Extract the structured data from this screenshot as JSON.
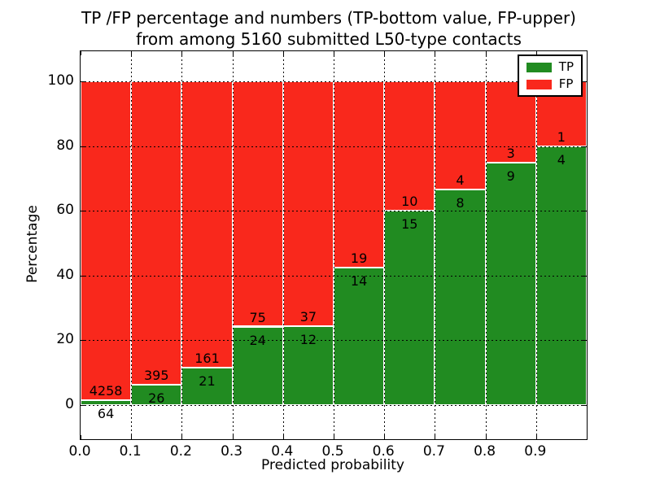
{
  "figure": {
    "title_line1": "TP /FP percentage and numbers (TP-bottom value, FP-upper)",
    "title_line2": "from among 5160 submitted L50-type contacts"
  },
  "axes": {
    "xlabel": "Predicted probability",
    "ylabel": "Percentage",
    "x_tick_labels": [
      "0.0",
      "0.1",
      "0.2",
      "0.3",
      "0.4",
      "0.5",
      "0.6",
      "0.7",
      "0.8",
      "0.9"
    ],
    "y_tick_labels": [
      "0",
      "20",
      "40",
      "60",
      "80",
      "100"
    ],
    "grid": true,
    "grid_style": "dotted-black",
    "bar_edge_color": "#ffffff"
  },
  "legend": {
    "position": "upper-right",
    "entries": [
      {
        "label": "TP",
        "color": "#218b21"
      },
      {
        "label": "FP",
        "color": "#f9281c"
      }
    ]
  },
  "chart_data": {
    "type": "bar",
    "stacked": true,
    "normalized": "each bin stack totals 100%",
    "title": "TP /FP percentage and numbers (TP-bottom value, FP-upper) from among 5160 submitted L50-type contacts",
    "xlabel": "Predicted probability",
    "ylabel": "Percentage",
    "total_contacts": 5160,
    "bins": [
      [
        0.0,
        0.1
      ],
      [
        0.1,
        0.2
      ],
      [
        0.2,
        0.3
      ],
      [
        0.3,
        0.4
      ],
      [
        0.4,
        0.5
      ],
      [
        0.5,
        0.6
      ],
      [
        0.6,
        0.7
      ],
      [
        0.7,
        0.8
      ],
      [
        0.8,
        0.9
      ],
      [
        0.9,
        1.0
      ]
    ],
    "series": [
      {
        "name": "TP",
        "color": "#218b21",
        "counts": [
          64,
          26,
          21,
          24,
          12,
          14,
          15,
          8,
          9,
          4
        ],
        "percent_of_bin": [
          1.5,
          6.2,
          11.5,
          24.2,
          24.5,
          42.4,
          60.0,
          66.7,
          75.0,
          80.0
        ]
      },
      {
        "name": "FP",
        "color": "#f9281c",
        "counts": [
          4258,
          395,
          161,
          75,
          37,
          19,
          10,
          4,
          3,
          1
        ],
        "percent_of_bin": [
          98.5,
          93.8,
          88.5,
          75.8,
          75.5,
          57.6,
          40.0,
          33.3,
          25.0,
          20.0
        ]
      }
    ],
    "annotation_rule": "TP count printed below green top edge, FP count printed above it",
    "xlim": [
      0.0,
      1.0
    ],
    "ylim": [
      -10.6,
      109.4
    ],
    "x_ticks": [
      0.0,
      0.1,
      0.2,
      0.3,
      0.4,
      0.5,
      0.6,
      0.7,
      0.8,
      0.9
    ],
    "y_ticks": [
      0,
      20,
      40,
      60,
      80,
      100
    ]
  }
}
